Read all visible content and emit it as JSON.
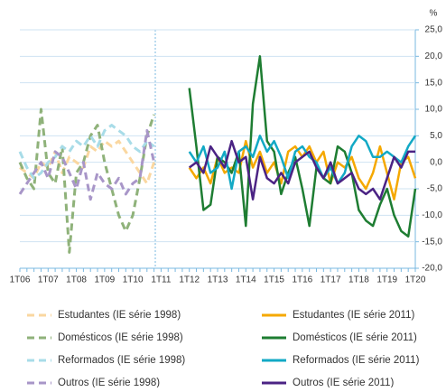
{
  "chart_data": {
    "type": "line",
    "y_label": "%",
    "categories": [
      "1T06",
      null,
      null,
      null,
      "1T07",
      null,
      null,
      null,
      "1T08",
      null,
      null,
      null,
      "1T09",
      null,
      null,
      null,
      "1T10",
      null,
      null,
      null,
      "1T11",
      null,
      null,
      null,
      "1T12",
      null,
      null,
      null,
      "1T13",
      null,
      null,
      null,
      "1T14",
      null,
      null,
      null,
      "1T15",
      null,
      null,
      null,
      "1T16",
      null,
      null,
      null,
      "1T17",
      null,
      null,
      null,
      "1T18",
      null,
      null,
      null,
      "1T19",
      null,
      null,
      null,
      "1T20"
    ],
    "ylim": [
      -20,
      25
    ],
    "yticks": [
      {
        "value": 25,
        "label": "25,0"
      },
      {
        "value": 20,
        "label": "20,0"
      },
      {
        "value": 15,
        "label": "15,0"
      },
      {
        "value": 10,
        "label": "10,0"
      },
      {
        "value": 5,
        "label": "5,0"
      },
      {
        "value": 0,
        "label": "0,0"
      },
      {
        "value": -5,
        "label": "-5,0"
      },
      {
        "value": -10,
        "label": "-10,0"
      },
      {
        "value": -15,
        "label": "-15,0"
      },
      {
        "value": -20,
        "label": "-20,0"
      }
    ],
    "grid": true,
    "series": [
      {
        "name": "Estudantes (IE série 1998)",
        "color": "#fad7a0",
        "style": "dashed",
        "values": [
          -1,
          -2,
          -3,
          0,
          -1,
          2,
          -2,
          1,
          0,
          -1,
          3,
          2,
          4,
          3,
          4,
          2,
          0,
          -2,
          -4,
          0,
          null,
          null,
          null,
          null,
          null,
          null,
          null,
          null,
          null,
          null,
          null,
          null,
          null,
          null,
          null,
          null,
          null,
          null,
          null,
          null,
          null,
          null,
          null,
          null,
          null,
          null,
          null,
          null,
          null,
          null,
          null,
          null,
          null,
          null,
          null,
          null,
          null
        ]
      },
      {
        "name": "Estudantes (IE série 2011)",
        "color": "#f5a800",
        "style": "solid",
        "values": [
          null,
          null,
          null,
          null,
          null,
          null,
          null,
          null,
          null,
          null,
          null,
          null,
          null,
          null,
          null,
          null,
          null,
          null,
          null,
          null,
          null,
          null,
          null,
          null,
          -1,
          -3,
          -1,
          -4,
          1,
          -2,
          -1,
          -2,
          4,
          -1,
          2,
          -2,
          0,
          -4,
          2,
          3,
          1,
          3,
          0,
          2,
          -4,
          0,
          -1,
          1,
          -3,
          -5,
          -2,
          3,
          -2,
          -7,
          0,
          1,
          -3
        ]
      },
      {
        "name": "Domésticos (IE série 1998)",
        "color": "#8fb27a",
        "style": "dashed",
        "values": [
          0,
          -3,
          -5,
          10,
          -2,
          -4,
          3,
          -17,
          -2,
          0,
          5,
          7,
          0,
          -5,
          -10,
          -13,
          -10,
          -3,
          5,
          9,
          null,
          null,
          null,
          null,
          null,
          null,
          null,
          null,
          null,
          null,
          null,
          null,
          null,
          null,
          null,
          null,
          null,
          null,
          null,
          null,
          null,
          null,
          null,
          null,
          null,
          null,
          null,
          null,
          null,
          null,
          null,
          null,
          null,
          null,
          null,
          null,
          null
        ]
      },
      {
        "name": "Domésticos (IE série 2011)",
        "color": "#1e7d32",
        "style": "solid",
        "values": [
          null,
          null,
          null,
          null,
          null,
          null,
          null,
          null,
          null,
          null,
          null,
          null,
          null,
          null,
          null,
          null,
          null,
          null,
          null,
          null,
          null,
          null,
          null,
          null,
          14,
          3,
          -9,
          -8,
          1,
          0,
          -2,
          2,
          -12,
          11,
          20,
          4,
          2,
          -6,
          -2,
          1,
          -5,
          -12,
          -1,
          -3,
          -4,
          3,
          2,
          -2,
          -9,
          -11,
          -12,
          -8,
          -5,
          -10,
          -13,
          -14,
          -5
        ]
      },
      {
        "name": "Reformados (IE série 1998)",
        "color": "#a8dce8",
        "style": "dashed",
        "values": [
          2,
          -1,
          -3,
          -2,
          0,
          1,
          3,
          2,
          4,
          3,
          5,
          3,
          6,
          7,
          6,
          5,
          3,
          2,
          4,
          3,
          null,
          null,
          null,
          null,
          null,
          null,
          null,
          null,
          null,
          null,
          null,
          null,
          null,
          null,
          null,
          null,
          null,
          null,
          null,
          null,
          null,
          null,
          null,
          null,
          null,
          null,
          null,
          null,
          null,
          null,
          null,
          null,
          null,
          null,
          null,
          null,
          null
        ]
      },
      {
        "name": "Reformados (IE série 2011)",
        "color": "#12a9c5",
        "style": "solid",
        "values": [
          null,
          null,
          null,
          null,
          null,
          null,
          null,
          null,
          null,
          null,
          null,
          null,
          null,
          null,
          null,
          null,
          null,
          null,
          null,
          null,
          null,
          null,
          null,
          null,
          2,
          0,
          3,
          -2,
          -1,
          2,
          -5,
          2,
          3,
          1,
          5,
          2,
          4,
          1,
          -3,
          2,
          3,
          1,
          0,
          -3,
          -1,
          -4,
          -2,
          3,
          5,
          4,
          1,
          1,
          2,
          1,
          0,
          3,
          5
        ]
      },
      {
        "name": "Outros (IE série 1998)",
        "color": "#a896c8",
        "style": "dashed",
        "values": [
          -6,
          -4,
          -2,
          0,
          -3,
          2,
          1,
          -2,
          -5,
          0,
          -7,
          -2,
          -4,
          -5,
          -3,
          -6,
          -4,
          -3,
          6,
          0,
          null,
          null,
          null,
          null,
          null,
          null,
          null,
          null,
          null,
          null,
          null,
          null,
          null,
          null,
          null,
          null,
          null,
          null,
          null,
          null,
          null,
          null,
          null,
          null,
          null,
          null,
          null,
          null,
          null,
          null,
          null,
          null,
          null,
          null,
          null,
          null,
          null
        ]
      },
      {
        "name": "Outros (IE série 2011)",
        "color": "#4b2384",
        "style": "solid",
        "values": [
          null,
          null,
          null,
          null,
          null,
          null,
          null,
          null,
          null,
          null,
          null,
          null,
          null,
          null,
          null,
          null,
          null,
          null,
          null,
          null,
          null,
          null,
          null,
          null,
          -1,
          0,
          -2,
          3,
          1,
          -1,
          4,
          0,
          1,
          -7,
          1,
          -3,
          -4,
          -2,
          -4,
          0,
          1,
          2,
          -1,
          -3,
          0,
          -4,
          -3,
          -2,
          -5,
          -6,
          -5,
          -7,
          -3,
          1,
          -1,
          2,
          2
        ]
      }
    ]
  }
}
